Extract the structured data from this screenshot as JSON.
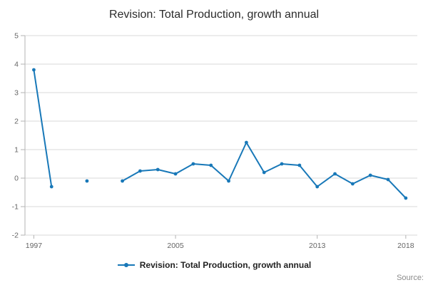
{
  "page": {
    "title": "Revision: Total Production, growth annual",
    "source_label": "Source:"
  },
  "legend": {
    "label": "Revision: Total Production, growth annual"
  },
  "colors": {
    "series": "#1878b8",
    "grid": "#d9d9d9",
    "axis": "#b3b3b3",
    "tick_label": "#666666"
  },
  "chart_data": {
    "type": "line",
    "title": "Revision: Total Production, growth annual",
    "xlabel": "",
    "ylabel": "",
    "legend_position": "bottom",
    "grid": "horizontal",
    "xlim": [
      1996.5,
      2018.65
    ],
    "ylim": [
      -2,
      5
    ],
    "x_ticks": [
      1997,
      2005,
      2013,
      2018
    ],
    "y_ticks": [
      -2,
      -1,
      0,
      1,
      2,
      3,
      4,
      5
    ],
    "series": [
      {
        "name": "Revision: Total Production, growth annual",
        "x": [
          1997,
          1998,
          1999,
          2000,
          2001,
          2002,
          2003,
          2004,
          2005,
          2006,
          2007,
          2008,
          2009,
          2010,
          2011,
          2012,
          2013,
          2014,
          2015,
          2016,
          2017,
          2018
        ],
        "values": [
          3.8,
          -0.3,
          null,
          -0.1,
          null,
          -0.1,
          0.25,
          0.3,
          0.15,
          0.5,
          0.45,
          -0.1,
          1.25,
          0.2,
          0.5,
          0.45,
          -0.3,
          0.15,
          -0.2,
          0.1,
          -0.05,
          -0.7
        ]
      }
    ]
  }
}
